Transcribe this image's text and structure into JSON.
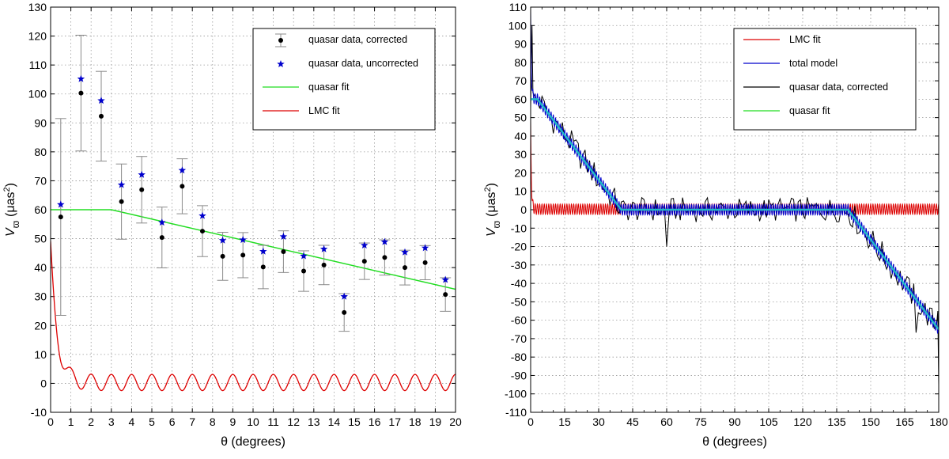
{
  "chart_data": [
    {
      "type": "scatter",
      "id": "left",
      "xlabel": "θ (degrees)",
      "ylabel_main": "V",
      "ylabel_sub": "ϖ",
      "ylabel_unit": "(μas",
      "ylabel_sup": "2",
      "ylabel_close": ")",
      "xlim": [
        0,
        20
      ],
      "ylim": [
        -10,
        130
      ],
      "xticks": [
        0,
        1,
        2,
        3,
        4,
        5,
        6,
        7,
        8,
        9,
        10,
        11,
        12,
        13,
        14,
        15,
        16,
        17,
        18,
        19,
        20
      ],
      "yticks": [
        -10,
        0,
        10,
        20,
        30,
        40,
        50,
        60,
        70,
        80,
        90,
        100,
        110,
        120,
        130
      ],
      "grid": true,
      "legend_position": "top-right",
      "legend": [
        {
          "label": "quasar data, corrected",
          "color": "#000000",
          "kind": "errorbar"
        },
        {
          "label": "quasar data, uncorrected",
          "color": "#0000cc",
          "kind": "star"
        },
        {
          "label": "quasar fit",
          "color": "#22dd22",
          "kind": "line"
        },
        {
          "label": "LMC fit",
          "color": "#dd0000",
          "kind": "line"
        }
      ],
      "series": [
        {
          "name": "quasar data, corrected",
          "color": "#000000",
          "x": [
            0.5,
            1.5,
            2.5,
            3.5,
            4.5,
            5.5,
            6.5,
            7.5,
            8.5,
            9.5,
            10.5,
            11.5,
            12.5,
            13.5,
            14.5,
            15.5,
            16.5,
            17.5,
            18.5,
            19.5
          ],
          "y": [
            57.5,
            100.3,
            92.3,
            62.8,
            66.9,
            50.4,
            68.1,
            52.6,
            43.9,
            44.3,
            40.2,
            45.5,
            38.8,
            40.9,
            24.5,
            42.2,
            43.5,
            40.0,
            41.7,
            30.7
          ],
          "err": [
            34,
            20,
            15.5,
            13,
            11.5,
            10.5,
            9.5,
            8.8,
            8.3,
            7.8,
            7.5,
            7.2,
            7.0,
            6.8,
            6.5,
            6.3,
            6.1,
            6.0,
            5.9,
            5.8
          ]
        },
        {
          "name": "quasar data, uncorrected",
          "color": "#0000cc",
          "x": [
            0.5,
            1.5,
            2.5,
            3.5,
            4.5,
            5.5,
            6.5,
            7.5,
            8.5,
            9.5,
            10.5,
            11.5,
            12.5,
            13.5,
            14.5,
            15.5,
            16.5,
            17.5,
            18.5,
            19.5
          ],
          "y": [
            61.8,
            105.2,
            97.7,
            68.6,
            72.1,
            55.6,
            73.6,
            57.9,
            49.4,
            49.6,
            45.6,
            50.7,
            44.0,
            46.4,
            30.0,
            47.7,
            48.9,
            45.3,
            46.8,
            35.8
          ]
        },
        {
          "name": "quasar fit",
          "color": "#22dd22",
          "x": [
            0,
            3,
            20
          ],
          "y": [
            60,
            60,
            32.5
          ]
        },
        {
          "name": "LMC fit",
          "color": "#dd0000",
          "amplitude0": 46,
          "decay_deg": 0.33,
          "oscillation_amp": 2.8,
          "oscillation_period_deg": 1.0,
          "baseline": 0.3
        }
      ]
    },
    {
      "type": "line",
      "id": "right",
      "xlabel": "θ (degrees)",
      "ylabel_main": "V",
      "ylabel_sub": "ϖ",
      "ylabel_unit": "(μas",
      "ylabel_sup": "2",
      "ylabel_close": ")",
      "xlim": [
        0,
        180
      ],
      "ylim": [
        -110,
        110
      ],
      "xticks": [
        0,
        15,
        30,
        45,
        60,
        75,
        90,
        105,
        120,
        135,
        150,
        165,
        180
      ],
      "yticks": [
        -110,
        -100,
        -90,
        -80,
        -70,
        -60,
        -50,
        -40,
        -30,
        -20,
        -10,
        0,
        10,
        20,
        30,
        40,
        50,
        60,
        70,
        80,
        90,
        100,
        110
      ],
      "grid": true,
      "legend_position": "top-right",
      "legend": [
        {
          "label": "LMC fit",
          "color": "#dd0000",
          "kind": "line"
        },
        {
          "label": "total model",
          "color": "#0000cc",
          "kind": "line"
        },
        {
          "label": "quasar data, corrected",
          "color": "#000000",
          "kind": "line"
        },
        {
          "label": "quasar fit",
          "color": "#22dd22",
          "kind": "line"
        }
      ],
      "series": [
        {
          "name": "quasar fit",
          "color": "#22dd22",
          "x": [
            0,
            3,
            40,
            140,
            180
          ],
          "y": [
            60,
            60,
            0,
            0,
            -65
          ]
        },
        {
          "name": "LMC fit",
          "color": "#dd0000",
          "amplitude0": 46,
          "decay_deg": 0.33,
          "oscillation_amp": 2.8,
          "oscillation_period_deg": 1.0,
          "baseline": 0.3
        },
        {
          "name": "quasar data, corrected",
          "color": "#000000",
          "noise_amp": 7.5,
          "spike_y": 100
        }
      ]
    }
  ]
}
